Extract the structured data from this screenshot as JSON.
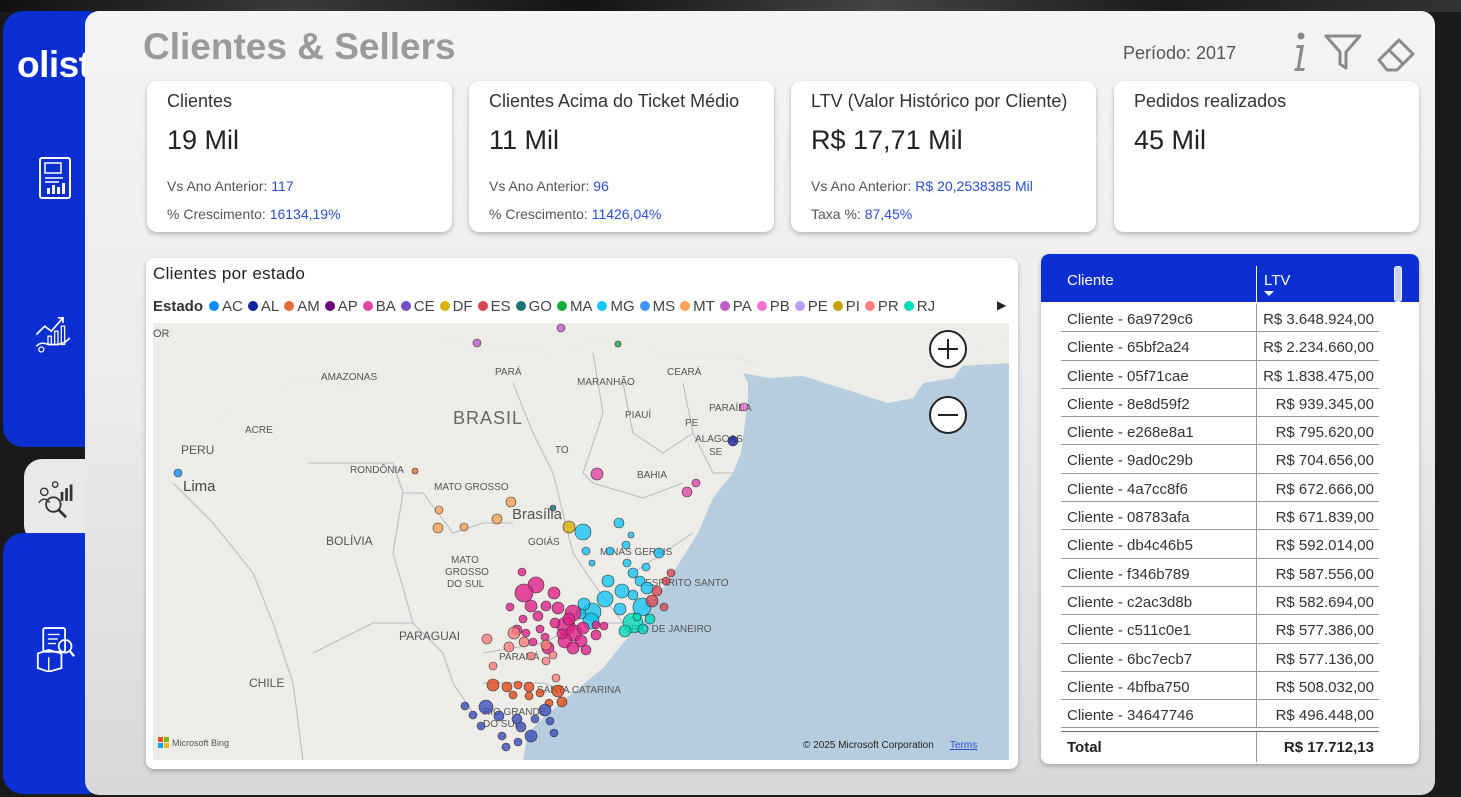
{
  "app": {
    "logo": "olist",
    "title": "Clientes & Sellers",
    "periodo": "Período: 2017"
  },
  "toolbar": {
    "icons": [
      "info-icon",
      "filter-icon",
      "eraser-icon"
    ]
  },
  "sidebar": {
    "items": [
      {
        "icon": "report-icon"
      },
      {
        "icon": "growth-chart-icon"
      },
      {
        "icon": "customer-analytics-icon",
        "active": true
      },
      {
        "icon": "inventory-box-icon"
      }
    ]
  },
  "cards": [
    {
      "title": "Clientes",
      "value": "19 Mil",
      "line1_label": "Vs Ano Anterior: ",
      "line1_value": "117",
      "line2_label": "% Crescimento: ",
      "line2_value": "16134,19%"
    },
    {
      "title": "Clientes Acima do Ticket Médio",
      "value": "11 Mil",
      "line1_label": "Vs Ano Anterior: ",
      "line1_value": "96",
      "line2_label": "% Crescimento: ",
      "line2_value": "11426,04%"
    },
    {
      "title": "LTV (Valor Histórico por Cliente)",
      "value": "R$ 17,71 Mil",
      "line1_label": "Vs Ano Anterior: ",
      "line1_value": "R$ 20,2538385 Mil",
      "line2_label": "Taxa %: ",
      "line2_value": "87,45%"
    },
    {
      "title": "Pedidos realizados",
      "value": "45 Mil"
    }
  ],
  "map": {
    "title": "Clientes por estado",
    "legend_label": "Estado",
    "legend": [
      {
        "name": "AC",
        "color": "#118DFF"
      },
      {
        "name": "AL",
        "color": "#12239E"
      },
      {
        "name": "AM",
        "color": "#E66C37"
      },
      {
        "name": "AP",
        "color": "#6B007B"
      },
      {
        "name": "BA",
        "color": "#E044A7"
      },
      {
        "name": "CE",
        "color": "#744EC2"
      },
      {
        "name": "DF",
        "color": "#D9B300"
      },
      {
        "name": "ES",
        "color": "#D64550"
      },
      {
        "name": "GO",
        "color": "#197278"
      },
      {
        "name": "MA",
        "color": "#1AAB40"
      },
      {
        "name": "MG",
        "color": "#15C6F4"
      },
      {
        "name": "MS",
        "color": "#4092FF"
      },
      {
        "name": "MT",
        "color": "#FFA058"
      },
      {
        "name": "PA",
        "color": "#BE5DC9"
      },
      {
        "name": "PB",
        "color": "#F472D0"
      },
      {
        "name": "PE",
        "color": "#B5A1FF"
      },
      {
        "name": "PI",
        "color": "#C4A200"
      },
      {
        "name": "PR",
        "color": "#FF8080"
      },
      {
        "name": "RJ",
        "color": "#00DBBC"
      }
    ],
    "labels": {
      "amazonas": "AMAZONAS",
      "para": "PARÁ",
      "maranhao": "MARANHÃO",
      "ceara": "CEARÁ",
      "brasil": "BRASIL",
      "piaui": "PIAUÍ",
      "paraiba": "PARAÍBA",
      "pe": "PE",
      "acre": "ACRE",
      "to": "TO",
      "alagoas": "ALAGOAS",
      "se": "SE",
      "peru": "PERU",
      "lima": "Lima",
      "rondonia": "RONDÔNIA",
      "bahia": "BAHIA",
      "mato_grosso": "MATO GROSSO",
      "brasilia": "Brasília",
      "goias": "GOIÁS",
      "bolivia": "BOLÍVIA",
      "minas_gerais": "MINAS GERAIS",
      "mato_grosso_do_sul_1": "MATO",
      "mato_grosso_do_sul_2": "GROSSO",
      "mato_grosso_do_sul_3": "DO SUL",
      "espirito_santo": "ESPÍRITO SANTO",
      "rio": "RIO DE JANEIRO",
      "paraguai": "PARAGUAI",
      "parana": "PARANÁ",
      "chile": "CHILE",
      "santa_catarina": "SANTA CATARINA",
      "rgs_1": "RIO GRANDE",
      "rgs_2": "DO SUL",
      "dor": "DOR"
    },
    "attribution": "© 2025 Microsoft Corporation",
    "terms": "Terms",
    "bing": "Microsoft Bing"
  },
  "table": {
    "headers": {
      "cliente": "Cliente",
      "ltv": "LTV"
    },
    "rows": [
      {
        "cliente": "Cliente - 6a9729c6",
        "ltv": "R$ 3.648.924,00"
      },
      {
        "cliente": "Cliente - 65bf2a24",
        "ltv": "R$ 2.234.660,00"
      },
      {
        "cliente": "Cliente - 05f71cae",
        "ltv": "R$ 1.838.475,00"
      },
      {
        "cliente": "Cliente - 8e8d59f2",
        "ltv": "R$ 939.345,00"
      },
      {
        "cliente": "Cliente - e268e8a1",
        "ltv": "R$ 795.620,00"
      },
      {
        "cliente": "Cliente - 9ad0c29b",
        "ltv": "R$ 704.656,00"
      },
      {
        "cliente": "Cliente - 4a7cc8f6",
        "ltv": "R$ 672.666,00"
      },
      {
        "cliente": "Cliente - 08783afa",
        "ltv": "R$ 671.839,00"
      },
      {
        "cliente": "Cliente - db4c46b5",
        "ltv": "R$ 592.014,00"
      },
      {
        "cliente": "Cliente - f346b789",
        "ltv": "R$ 587.556,00"
      },
      {
        "cliente": "Cliente - c2ac3d8b",
        "ltv": "R$ 582.694,00"
      },
      {
        "cliente": "Cliente - c511c0e1",
        "ltv": "R$ 577.386,00"
      },
      {
        "cliente": "Cliente - 6bc7ecb7",
        "ltv": "R$ 577.136,00"
      },
      {
        "cliente": "Cliente - 4bfba750",
        "ltv": "R$ 508.032,00"
      },
      {
        "cliente": "Cliente - 34647746",
        "ltv": "R$ 496.448,00"
      }
    ],
    "total_label": "Total",
    "total_value": "R$ 17.712,13"
  }
}
